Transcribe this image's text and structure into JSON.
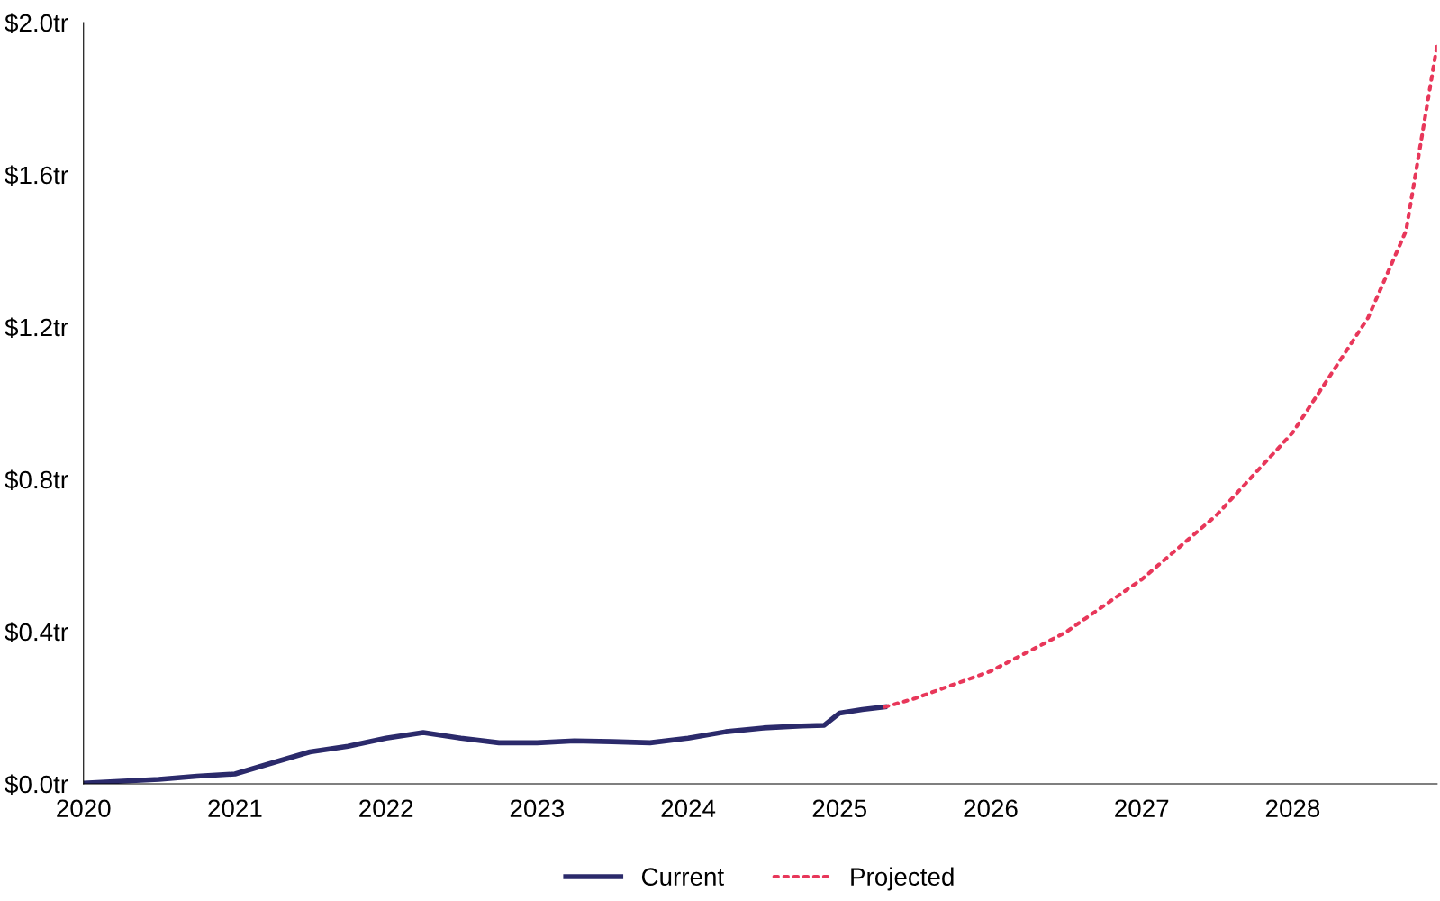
{
  "chart_data": {
    "type": "line",
    "x": [
      "2020-01-01",
      "2020-07-01",
      "2020-10-01",
      "2021-01-01",
      "2021-04-01",
      "2021-07-01",
      "2021-10-01",
      "2022-01-01",
      "2022-04-01",
      "2022-07-01",
      "2022-10-01",
      "2023-01-01",
      "2023-04-01",
      "2023-07-01",
      "2023-10-01",
      "2024-01-01",
      "2024-04-01",
      "2024-07-01",
      "2024-10-01",
      "2024-11-25",
      "2025-01-01",
      "2025-02-25",
      "2025-04-20"
    ],
    "series": [
      {
        "name": "Current",
        "color": "#2b2a6b",
        "line_style": "solid",
        "values": [
          0.002,
          0.012,
          0.02,
          0.026,
          0.055,
          0.084,
          0.099,
          0.12,
          0.135,
          0.12,
          0.108,
          0.108,
          0.113,
          0.111,
          0.108,
          0.12,
          0.137,
          0.147,
          0.152,
          0.154,
          0.186,
          0.195,
          0.202
        ]
      },
      {
        "name": "Projected",
        "color": "#e8375a",
        "line_style": "dotted",
        "x": [
          "2025-04-20",
          "2025-07-01",
          "2026-01-01",
          "2026-07-01",
          "2027-01-01",
          "2027-07-01",
          "2028-01-01",
          "2028-07-01",
          "2028-10-01",
          "2028-12-15"
        ],
        "values": [
          0.202,
          0.224,
          0.296,
          0.398,
          0.537,
          0.706,
          0.923,
          1.224,
          1.453,
          1.94
        ]
      }
    ],
    "xlim": [
      "2020-01-01",
      "2028-12-15"
    ],
    "xticks": [
      {
        "value": "2020-01-01",
        "label": "2020"
      },
      {
        "value": "2021-01-01",
        "label": "2021"
      },
      {
        "value": "2022-01-01",
        "label": "2022"
      },
      {
        "value": "2023-01-01",
        "label": "2023"
      },
      {
        "value": "2024-01-01",
        "label": "2024"
      },
      {
        "value": "2025-01-01",
        "label": "2025"
      },
      {
        "value": "2026-01-01",
        "label": "2026"
      },
      {
        "value": "2027-01-01",
        "label": "2027"
      },
      {
        "value": "2028-01-01",
        "label": "2028"
      }
    ],
    "ylim": [
      0,
      2.0
    ],
    "yticks": [
      {
        "value": 0,
        "label": "$0.0tr"
      },
      {
        "value": 0.4,
        "label": "$0.4tr"
      },
      {
        "value": 0.8,
        "label": "$0.8tr"
      },
      {
        "value": 1.2,
        "label": "$1.2tr"
      },
      {
        "value": 1.6,
        "label": "$1.6tr"
      },
      {
        "value": 2.0,
        "label": "$2.0tr"
      }
    ],
    "grid": false,
    "legend": "bottom"
  }
}
